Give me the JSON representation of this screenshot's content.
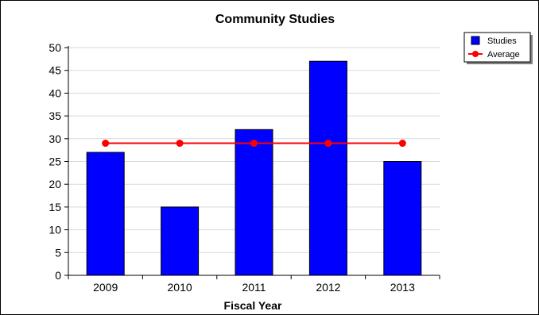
{
  "chart_data": {
    "type": "bar",
    "title": "Community Studies",
    "xlabel": "Fiscal Year",
    "ylabel": "",
    "categories": [
      "2009",
      "2010",
      "2011",
      "2012",
      "2013"
    ],
    "ylim": [
      0,
      50
    ],
    "ytick_step": 5,
    "grid": true,
    "series": [
      {
        "name": "Studies",
        "type": "bar",
        "color": "#0000ff",
        "values": [
          27,
          15,
          32,
          47,
          25
        ]
      },
      {
        "name": "Average",
        "type": "line",
        "color": "#ff0000",
        "values": [
          29,
          29,
          29,
          29,
          29
        ]
      }
    ],
    "legend_position": "top-right"
  }
}
